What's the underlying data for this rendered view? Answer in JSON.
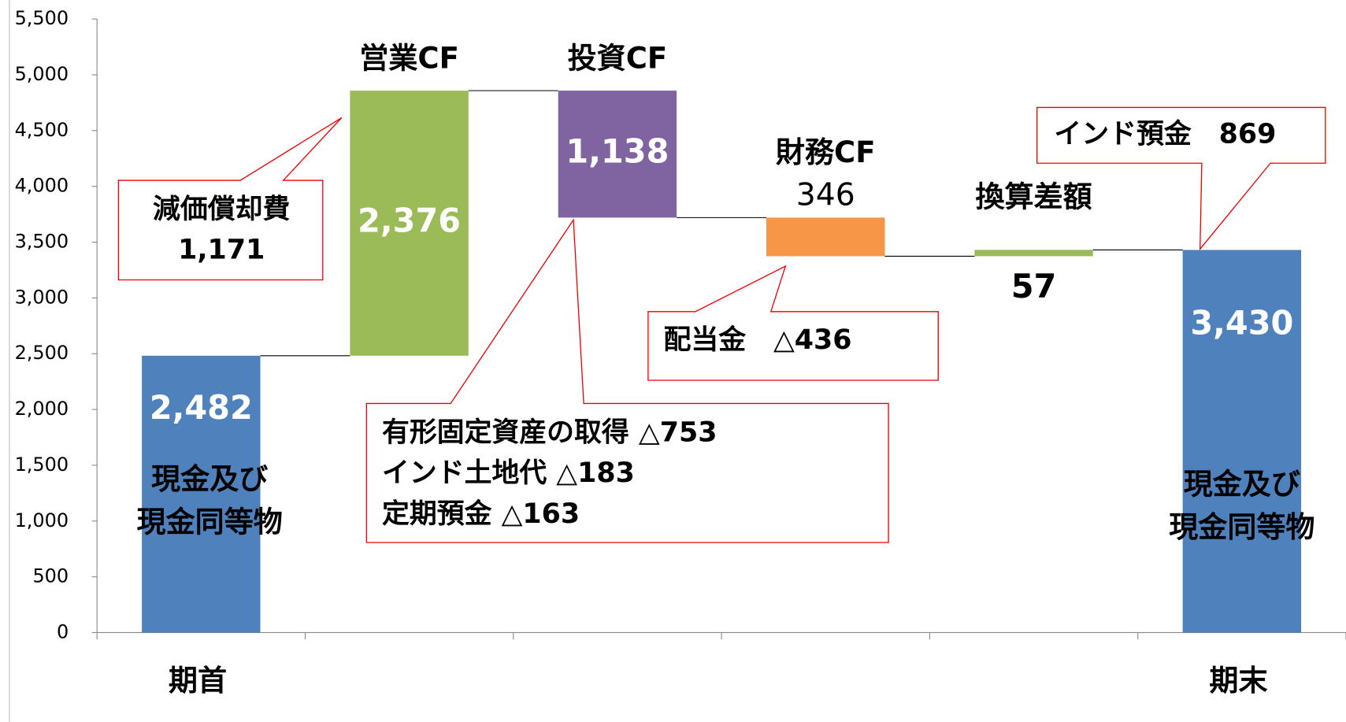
{
  "chart_data": {
    "type": "waterfall",
    "categories": [
      "期首",
      null,
      null,
      null,
      null,
      "期末"
    ],
    "bar_names": [
      null,
      "営業CF",
      "投資CF",
      "財務CF",
      "換算差額",
      null
    ],
    "values": [
      2482,
      2376,
      -1138,
      -346,
      57,
      3430
    ],
    "value_labels": [
      "2,482",
      "2,376",
      "1,138",
      "346",
      "57",
      "3,430"
    ],
    "bar_kinds": [
      "total",
      "delta",
      "delta",
      "delta",
      "delta",
      "total"
    ],
    "colors": [
      "#4f81bd",
      "#9bbb59",
      "#8064a2",
      "#f79646",
      "#9bbb59",
      "#4f81bd"
    ],
    "total_label": [
      "現金及び",
      "現金同等物"
    ],
    "ylim": [
      0,
      5500
    ],
    "yticks": [
      0,
      500,
      {
        "value": 1000,
        "label": "1,000"
      },
      {
        "value": 1500,
        "label": "1,500"
      },
      {
        "value": 2000,
        "label": "2,000"
      },
      {
        "value": 2500,
        "label": "2,500"
      },
      {
        "value": 3000,
        "label": "3,000"
      },
      {
        "value": 3500,
        "label": "3,500"
      },
      {
        "value": 4000,
        "label": "4,000"
      },
      {
        "value": 4500,
        "label": "4,500"
      },
      {
        "value": 5000,
        "label": "5,000"
      },
      {
        "value": 5500,
        "label": "5,500"
      }
    ],
    "annotations": {
      "depreciation": [
        "減価償却費",
        "1,171"
      ],
      "investing": [
        "有形固定資産の取得 △753",
        "インド土地代 △183",
        "定期預金 △163"
      ],
      "dividend": "配当金　△436",
      "india_deposit": "インド預金　869"
    }
  }
}
